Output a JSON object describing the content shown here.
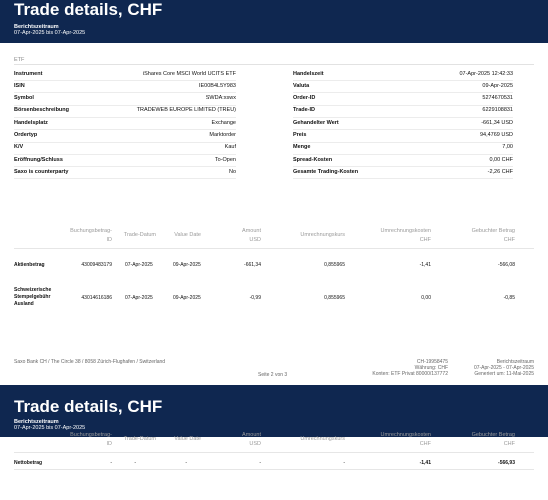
{
  "page1": {
    "title": "Trade details, CHF",
    "period_label": "Berichtszeitraum",
    "period_value": "07-Apr-2025 bis 07-Apr-2025",
    "section": "ETF",
    "left_fields": [
      {
        "k": "Instrument",
        "v": "iShares Core MSCI World UCITS ETF"
      },
      {
        "k": "ISIN",
        "v": "IE00B4L5Y983"
      },
      {
        "k": "Symbol",
        "v": "SWDA:xswx"
      },
      {
        "k": "Börsenbeschreibung",
        "v": "TRADEWEB EUROPE LIMITED (TREU)"
      },
      {
        "k": "Handelsplatz",
        "v": "Exchange"
      },
      {
        "k": "Ordertyp",
        "v": "Marktorder"
      },
      {
        "k": "K/V",
        "v": "Kauf"
      },
      {
        "k": "Eröffnung/Schluss",
        "v": "To-Open"
      },
      {
        "k": "Saxo is counterparty",
        "v": "No"
      }
    ],
    "right_fields": [
      {
        "k": "Handelszeit",
        "v": "07-Apr-2025 12:42:33"
      },
      {
        "k": "Valuta",
        "v": "09-Apr-2025"
      },
      {
        "k": "Order-ID",
        "v": "5274670531"
      },
      {
        "k": "Trade-ID",
        "v": "6229108831"
      },
      {
        "k": "Gehandelter Wert",
        "v": "-661,34 USD"
      },
      {
        "k": "Preis",
        "v": "94,4769 USD"
      },
      {
        "k": "Menge",
        "v": "7,00"
      },
      {
        "k": "Spread-Kosten",
        "v": "0,00 CHF"
      },
      {
        "k": "Gesamte Trading-Kosten",
        "v": "-2,26 CHF"
      }
    ],
    "table_headers": {
      "buchung_1": "Buchungsbetrag-",
      "buchung_2": "ID",
      "trade_datum": "Trade-Datum",
      "value_date": "Value Date",
      "amount_1": "Amount",
      "amount_2": "USD",
      "umrechnungskurs": "Umrechnungskurs",
      "umrechnungskosten_1": "Umrechnungskosten",
      "umrechnungskosten_2": "CHF",
      "gebucht_1": "Gebuchter Betrag",
      "gebucht_2": "CHF"
    },
    "rows": [
      {
        "label": [
          "Aktienbetrag"
        ],
        "id": "43009483179",
        "trade_date": "07-Apr-2025",
        "value_date": "09-Apr-2025",
        "amount": "-661,34",
        "kurs": "0,855965",
        "kosten": "-1,41",
        "betrag": "-566,08"
      },
      {
        "label": [
          "Schweizerische",
          "Stempelgebühr",
          "Ausland"
        ],
        "id": "43014616186",
        "trade_date": "07-Apr-2025",
        "value_date": "09-Apr-2025",
        "amount": "-0,99",
        "kurs": "0,855965",
        "kosten": "0,00",
        "betrag": "-0,85"
      }
    ],
    "footer": {
      "address": "Saxo Bank CH / The Circle 38 / 8058 Zürich-Flughafen / Switzerland",
      "page": "Seite 2 von 3",
      "account_1": "CH-19958475",
      "account_2": "Währung: CHF",
      "account_3": "Konten: ETF Privat 80000/137772",
      "period_1": "Berichtszeitraum",
      "period_2": "07-Apr-2025 - 07-Apr-2025",
      "period_3": "Generiert um: 11-Mai-2025"
    }
  },
  "page2": {
    "title": "Trade details, CHF",
    "period_label": "Berichtszeitraum",
    "period_value": "07-Apr-2025 bis 07-Apr-2025",
    "row": {
      "label": "Nettobetrag",
      "id": "-",
      "trade_date": "-",
      "value_date": "-",
      "amount": "-",
      "kurs": "-",
      "kosten": "-1,41",
      "betrag": "-566,93"
    }
  }
}
